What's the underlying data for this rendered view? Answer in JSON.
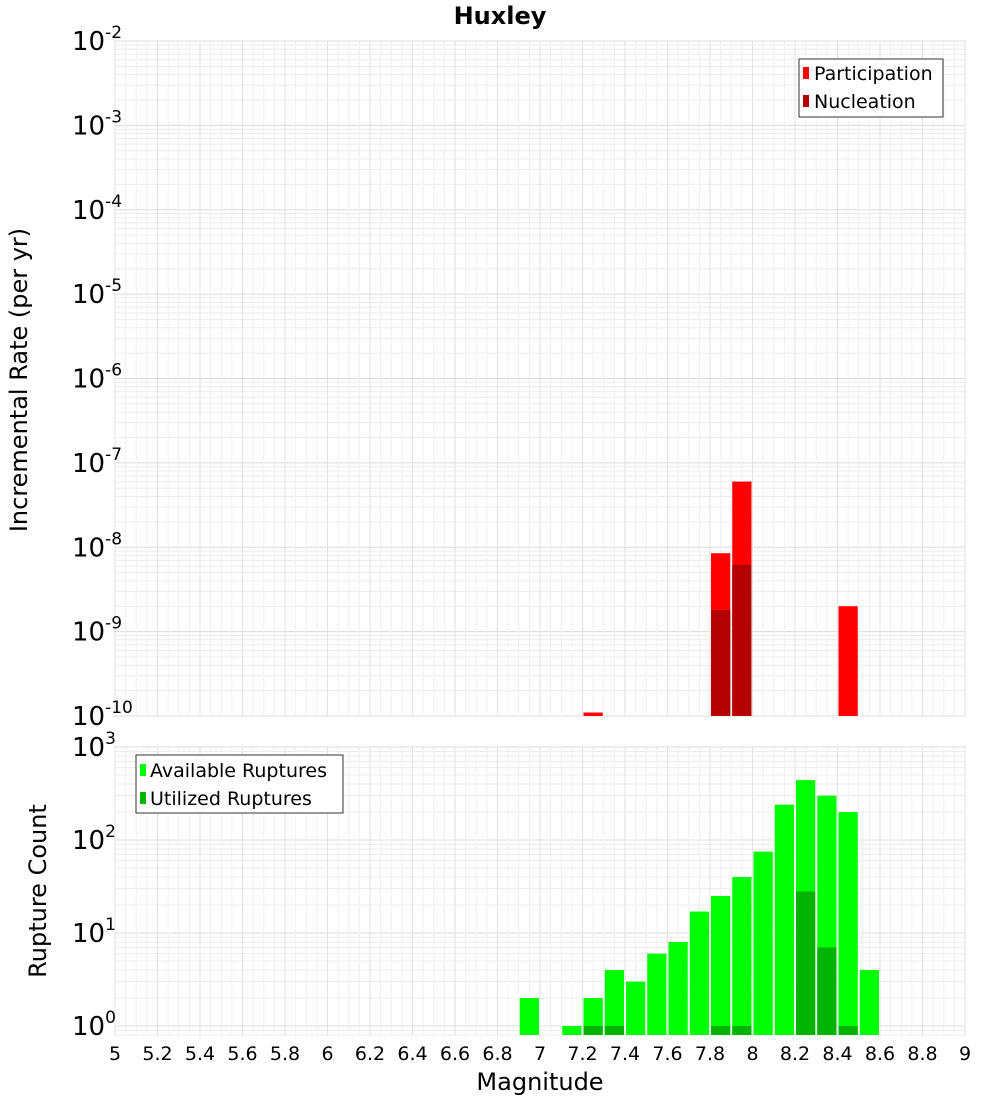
{
  "chart_data": [
    {
      "type": "bar",
      "title": "Huxley",
      "xlabel": "",
      "ylabel": "Incremental Rate (per yr)",
      "y_scale": "log",
      "xlim": [
        5,
        9
      ],
      "ylim": [
        1e-10,
        0.01
      ],
      "bin_width": 0.1,
      "y_ticks": [
        {
          "base": "10",
          "exp": "-10",
          "value": 1e-10
        },
        {
          "base": "10",
          "exp": "-9",
          "value": 1e-09
        },
        {
          "base": "10",
          "exp": "-8",
          "value": 1e-08
        },
        {
          "base": "10",
          "exp": "-7",
          "value": 1e-07
        },
        {
          "base": "10",
          "exp": "-6",
          "value": 1e-06
        },
        {
          "base": "10",
          "exp": "-5",
          "value": 1e-05
        },
        {
          "base": "10",
          "exp": "-4",
          "value": 0.0001
        },
        {
          "base": "10",
          "exp": "-3",
          "value": 0.001
        },
        {
          "base": "10",
          "exp": "-2",
          "value": 0.01
        }
      ],
      "legend_position": "top-right",
      "series": [
        {
          "name": "Participation",
          "color": "#ff0000",
          "points": [
            {
              "x": 7.25,
              "y": 1.1e-10
            },
            {
              "x": 7.85,
              "y": 8.5e-09
            },
            {
              "x": 7.95,
              "y": 6e-08
            },
            {
              "x": 8.45,
              "y": 2e-09
            }
          ]
        },
        {
          "name": "Nucleation",
          "color": "#b30000",
          "points": [
            {
              "x": 7.85,
              "y": 1.8e-09
            },
            {
              "x": 7.95,
              "y": 6.2e-09
            }
          ]
        }
      ]
    },
    {
      "type": "bar",
      "title": "",
      "xlabel": "Magnitude",
      "ylabel": "Rupture Count",
      "y_scale": "log",
      "xlim": [
        5,
        9
      ],
      "ylim": [
        0.8,
        1000
      ],
      "bin_width": 0.1,
      "x_ticks": [
        "5",
        "5.2",
        "5.4",
        "5.6",
        "5.8",
        "6",
        "6.2",
        "6.4",
        "6.6",
        "6.8",
        "7",
        "7.2",
        "7.4",
        "7.6",
        "7.8",
        "8",
        "8.2",
        "8.4",
        "8.6",
        "8.8",
        "9"
      ],
      "y_ticks": [
        {
          "base": "10",
          "exp": "0",
          "value": 1
        },
        {
          "base": "10",
          "exp": "1",
          "value": 10
        },
        {
          "base": "10",
          "exp": "2",
          "value": 100
        },
        {
          "base": "10",
          "exp": "3",
          "value": 1000
        }
      ],
      "legend_position": "top-left",
      "series": [
        {
          "name": "Available Ruptures",
          "color": "#00ff00",
          "points": [
            {
              "x": 6.95,
              "y": 2
            },
            {
              "x": 7.15,
              "y": 1
            },
            {
              "x": 7.25,
              "y": 2
            },
            {
              "x": 7.35,
              "y": 4
            },
            {
              "x": 7.45,
              "y": 3
            },
            {
              "x": 7.55,
              "y": 6
            },
            {
              "x": 7.65,
              "y": 8
            },
            {
              "x": 7.75,
              "y": 17
            },
            {
              "x": 7.85,
              "y": 25
            },
            {
              "x": 7.95,
              "y": 40
            },
            {
              "x": 8.05,
              "y": 75
            },
            {
              "x": 8.15,
              "y": 240
            },
            {
              "x": 8.25,
              "y": 440
            },
            {
              "x": 8.35,
              "y": 300
            },
            {
              "x": 8.45,
              "y": 200
            },
            {
              "x": 8.55,
              "y": 4
            }
          ]
        },
        {
          "name": "Utilized Ruptures",
          "color": "#00b300",
          "points": [
            {
              "x": 7.25,
              "y": 1
            },
            {
              "x": 7.35,
              "y": 1
            },
            {
              "x": 7.85,
              "y": 1
            },
            {
              "x": 7.95,
              "y": 1
            },
            {
              "x": 8.25,
              "y": 28
            },
            {
              "x": 8.35,
              "y": 7
            },
            {
              "x": 8.45,
              "y": 1
            }
          ]
        }
      ]
    }
  ]
}
